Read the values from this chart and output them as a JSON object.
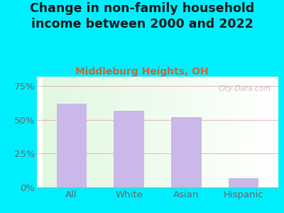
{
  "title": "Change in non-family household\nincome between 2000 and 2022",
  "subtitle": "Middleburg Heights, OH",
  "categories": [
    "All",
    "White",
    "Asian",
    "Hispanic"
  ],
  "values": [
    62,
    57,
    52,
    7
  ],
  "bar_color": "#c9b8e8",
  "title_fontsize": 12.5,
  "subtitle_fontsize": 10,
  "subtitle_color": "#cc6633",
  "title_color": "#1a1a1a",
  "background_outer": "#00efff",
  "yticks": [
    0,
    25,
    50,
    75
  ],
  "ytick_labels": [
    "0%",
    "25%",
    "50%",
    "75%"
  ],
  "ylim": [
    0,
    82
  ],
  "grid_color": "#ddb0b0",
  "watermark": "City-Data.com",
  "tick_color": "#666666"
}
